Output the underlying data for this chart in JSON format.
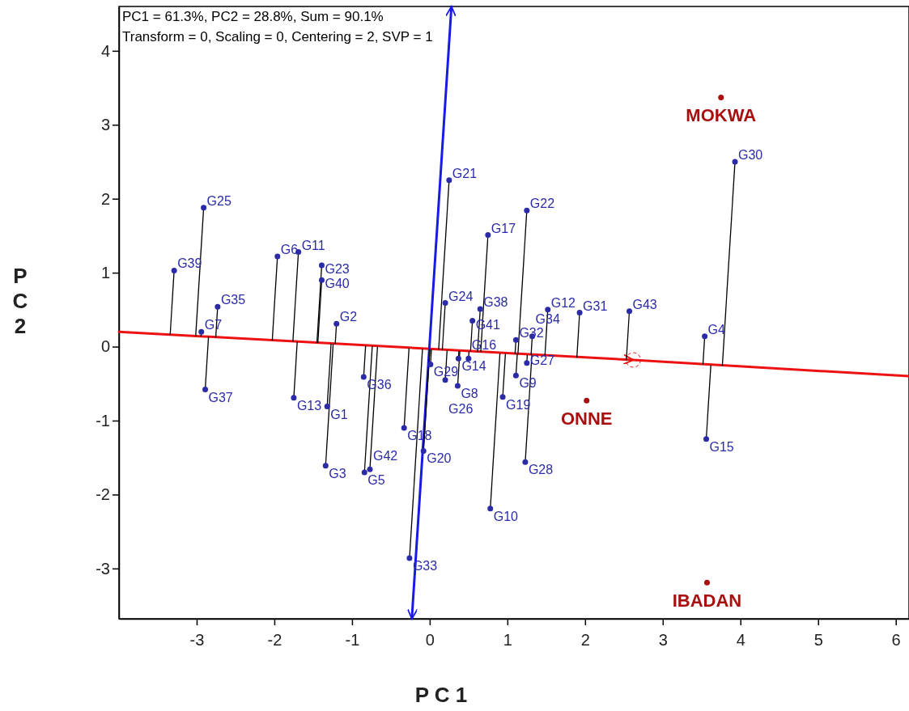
{
  "chart_data": {
    "type": "scatter",
    "xlabel": "P C 1",
    "ylabel": "P C 2",
    "xlim": [
      -4,
      6.17
    ],
    "ylim": [
      -3.68,
      4.6
    ],
    "xticks": [
      -3,
      -2,
      -1,
      0,
      1,
      2,
      3,
      4,
      5,
      6
    ],
    "yticks": [
      -3,
      -2,
      -1,
      0,
      1,
      2,
      3,
      4
    ],
    "grid": false,
    "annotations": [
      "PC1 = 61.3%, PC2 = 28.8%, Sum = 90.1%",
      "Transform = 0, Scaling = 0, Centering = 2, SVP = 1"
    ],
    "series": [
      {
        "type": "line",
        "color": "#ee1111",
        "x": [
          -4,
          2.62,
          6.17
        ],
        "values": [
          0.2,
          -0.18,
          -0.4
        ]
      },
      {
        "type": "line",
        "color": "#1a1ae6",
        "x": [
          -0.23,
          0.28
        ],
        "values": [
          -3.68,
          4.6
        ]
      },
      {
        "color": "#ee1111",
        "marker": "circle",
        "line_style": "dashed",
        "x": [
          2.62
        ],
        "values": [
          -0.18
        ]
      },
      {
        "color": "#2b2ba8",
        "marker": "circle",
        "x": [
          -1.32,
          -1.2,
          -1.34,
          3.54,
          -0.84,
          -1.96,
          -2.94,
          0.36,
          1.11,
          0.78,
          -1.69,
          1.52,
          -1.75,
          0.37,
          3.56,
          0.5,
          0.75,
          -0.33,
          0.94,
          -0.08,
          0.25,
          1.25,
          -1.39,
          0.2,
          -2.91,
          0.2,
          1.25,
          1.23,
          0.01,
          3.93,
          1.93,
          1.11,
          -0.26,
          1.32,
          -2.73,
          -0.85,
          -2.89,
          0.65,
          -3.29,
          -1.39,
          0.55,
          -0.77,
          2.57
        ],
        "values": [
          -0.81,
          0.31,
          -1.61,
          0.14,
          -1.7,
          1.22,
          0.2,
          -0.53,
          -0.39,
          -2.19,
          1.28,
          0.5,
          -0.69,
          -0.16,
          -1.25,
          -0.16,
          1.51,
          -1.1,
          -0.68,
          -1.41,
          2.25,
          1.84,
          1.1,
          0.59,
          1.88,
          -0.45,
          -0.22,
          -1.56,
          -0.24,
          2.5,
          0.46,
          0.09,
          -2.86,
          0.14,
          0.54,
          -0.41,
          -0.58,
          0.51,
          1.03,
          0.9,
          0.35,
          -1.66,
          0.48
        ],
        "value_labels": [
          "G1",
          "G2",
          "G3",
          "G4",
          "G5",
          "G6",
          "G7",
          "G8",
          "G9",
          "G10",
          "G11",
          "G12",
          "G13",
          "G14",
          "G15",
          "G16",
          "G17",
          "G18",
          "G19",
          "G20",
          "G21",
          "G22",
          "G23",
          "G24",
          "G25",
          "G26",
          "G27",
          "G28",
          "G29",
          "G30",
          "G31",
          "G32",
          "G33",
          "G34",
          "G35",
          "G36",
          "G37",
          "G38",
          "G39",
          "G40",
          "G41",
          "G42",
          "G43"
        ]
      },
      {
        "color": "#a80f0f",
        "marker": "circle",
        "x": [
          3.75,
          2.02,
          3.57
        ],
        "values": [
          3.37,
          -0.73,
          -3.19
        ],
        "value_labels": [
          "MOKWA",
          "ONNE",
          "IBADAN"
        ]
      }
    ]
  }
}
